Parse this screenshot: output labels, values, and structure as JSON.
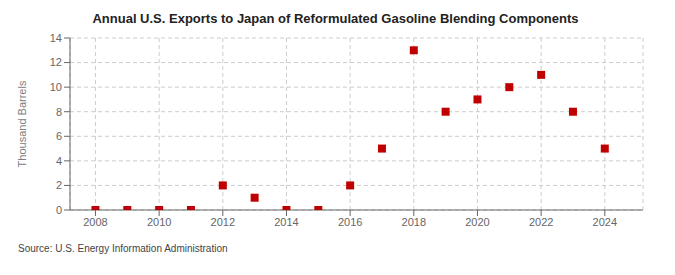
{
  "chart_data": {
    "type": "scatter",
    "title": "Annual U.S. Exports to Japan of Reformulated Gasoline Blending Components",
    "y_label": "Thousand Barrels",
    "annotations": [
      "Source: U.S. Energy Information Administration"
    ],
    "x": [
      2008,
      2009,
      2010,
      2011,
      2012,
      2013,
      2014,
      2015,
      2016,
      2017,
      2018,
      2019,
      2020,
      2021,
      2022,
      2023,
      2024
    ],
    "values": [
      0,
      0,
      0,
      0,
      2,
      1,
      0,
      0,
      2,
      5,
      13,
      8,
      9,
      10,
      11,
      8,
      5
    ],
    "color": "#c00000",
    "marker": "square",
    "xlim": [
      2007.2,
      2025.2
    ],
    "ylim": [
      0,
      14
    ],
    "xticks": [
      2008,
      2010,
      2012,
      2014,
      2016,
      2018,
      2020,
      2022,
      2024
    ],
    "yticks": [
      0,
      2,
      4,
      6,
      8,
      10,
      12,
      14
    ],
    "grid": true
  }
}
